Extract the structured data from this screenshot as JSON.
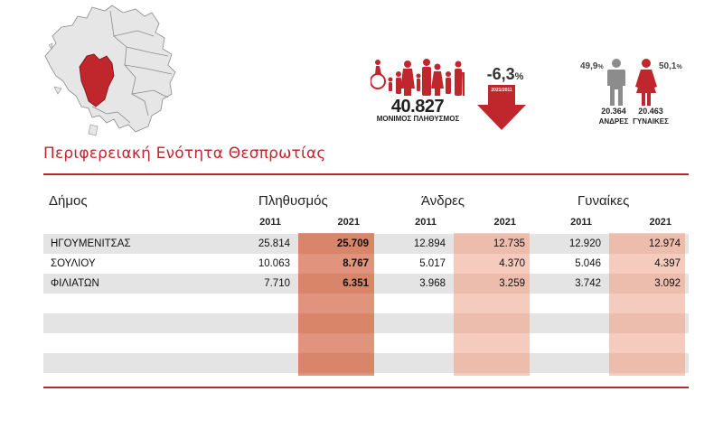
{
  "header": {
    "population_total": "40.827",
    "population_caption": "ΜΟΝΙΜΟΣ ΠΛΗΘΥΣΜΟΣ",
    "change_value": "-6,3",
    "change_unit": "%",
    "change_period": "2021/2011",
    "men_percent": "49,9",
    "women_percent": "50,1",
    "percent_symbol": "%",
    "men_count": "20.364",
    "women_count": "20.463",
    "men_label": "ΑΝΔΡΕΣ",
    "women_label": "ΓΥΝΑΙΚΕΣ"
  },
  "region_title": "Περιφερειακή Ενότητα Θεσπρωτίας",
  "colors": {
    "accent": "#c0272d",
    "pop_2021_fill": "#d8856a",
    "gender_2021_fill": "#f4cbbd",
    "row_shade": "#e4e4e4"
  },
  "table": {
    "headers": {
      "municipality": "Δήμος",
      "population": "Πληθυσμός",
      "men": "Άνδρες",
      "women": "Γυναίκες"
    },
    "years": [
      "2011",
      "2021",
      "2011",
      "2021",
      "2011",
      "2021"
    ],
    "rows": [
      {
        "name": "ΗΓΟΥΜΕΝΙΤΣΑΣ",
        "values": [
          "25.814",
          "25.709",
          "12.894",
          "12.735",
          "12.920",
          "12.974"
        ]
      },
      {
        "name": "ΣΟΥΛΙΟΥ",
        "values": [
          "10.063",
          "8.767",
          "5.017",
          "4.370",
          "5.046",
          "4.397"
        ]
      },
      {
        "name": "ΦΙΛΙΑΤΩΝ",
        "values": [
          "7.710",
          "6.351",
          "3.968",
          "3.259",
          "3.742",
          "3.092"
        ]
      }
    ]
  }
}
